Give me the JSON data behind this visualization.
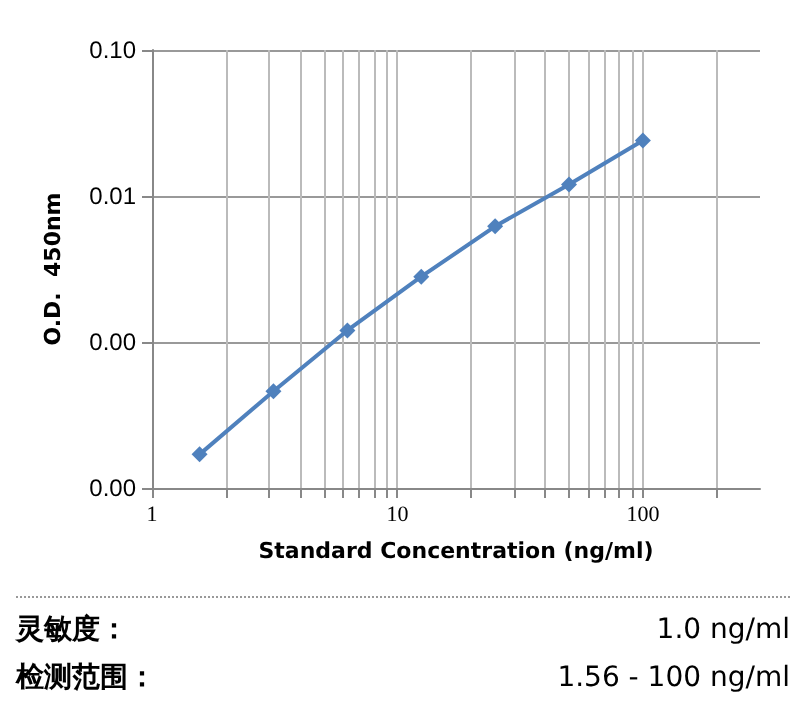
{
  "chart_data": {
    "type": "line",
    "xlabel": "Standard Concentration (ng/ml)",
    "ylabel": "O.D.  450nm",
    "x": [
      1.5625,
      3.125,
      6.25,
      12.5,
      25,
      50,
      100
    ],
    "series": [
      {
        "color": "#4f81bd",
        "values": [
          0.00017,
          0.00046,
          0.0012,
          0.0028,
          0.0062,
          0.012,
          0.024
        ]
      }
    ],
    "log": "xy",
    "xlim": [
      1,
      300
    ],
    "ylim": [
      0.0001,
      0.1
    ],
    "xticks": [
      1,
      {
        "value": 2,
        "label": null
      },
      {
        "value": 3,
        "label": null
      },
      {
        "value": 4,
        "label": null
      },
      {
        "value": 5,
        "label": null
      },
      {
        "value": 6,
        "label": null
      },
      {
        "value": 7,
        "label": null
      },
      {
        "value": 8,
        "label": null
      },
      {
        "value": 9,
        "label": null
      },
      10,
      {
        "value": 20,
        "label": null
      },
      {
        "value": 30,
        "label": null
      },
      {
        "value": 40,
        "label": null
      },
      {
        "value": 50,
        "label": null
      },
      {
        "value": 60,
        "label": null
      },
      {
        "value": 70,
        "label": null
      },
      {
        "value": 80,
        "label": null
      },
      {
        "value": 90,
        "label": null
      },
      100,
      {
        "value": 200,
        "label": null
      }
    ],
    "yticks": [
      {
        "value": 0.0001,
        "label": "0.00"
      },
      {
        "value": 0.001,
        "label": "0.00"
      },
      {
        "value": 0.01,
        "label": "0.01"
      },
      {
        "value": 0.1,
        "label": "0.10"
      }
    ],
    "grid": true,
    "marker": "diamond",
    "line_style": "solid",
    "annotations": [
      "灵敏度：",
      "1.0 ng/ml",
      "检测范围：",
      "1.56 - 100 ng/ml"
    ]
  }
}
